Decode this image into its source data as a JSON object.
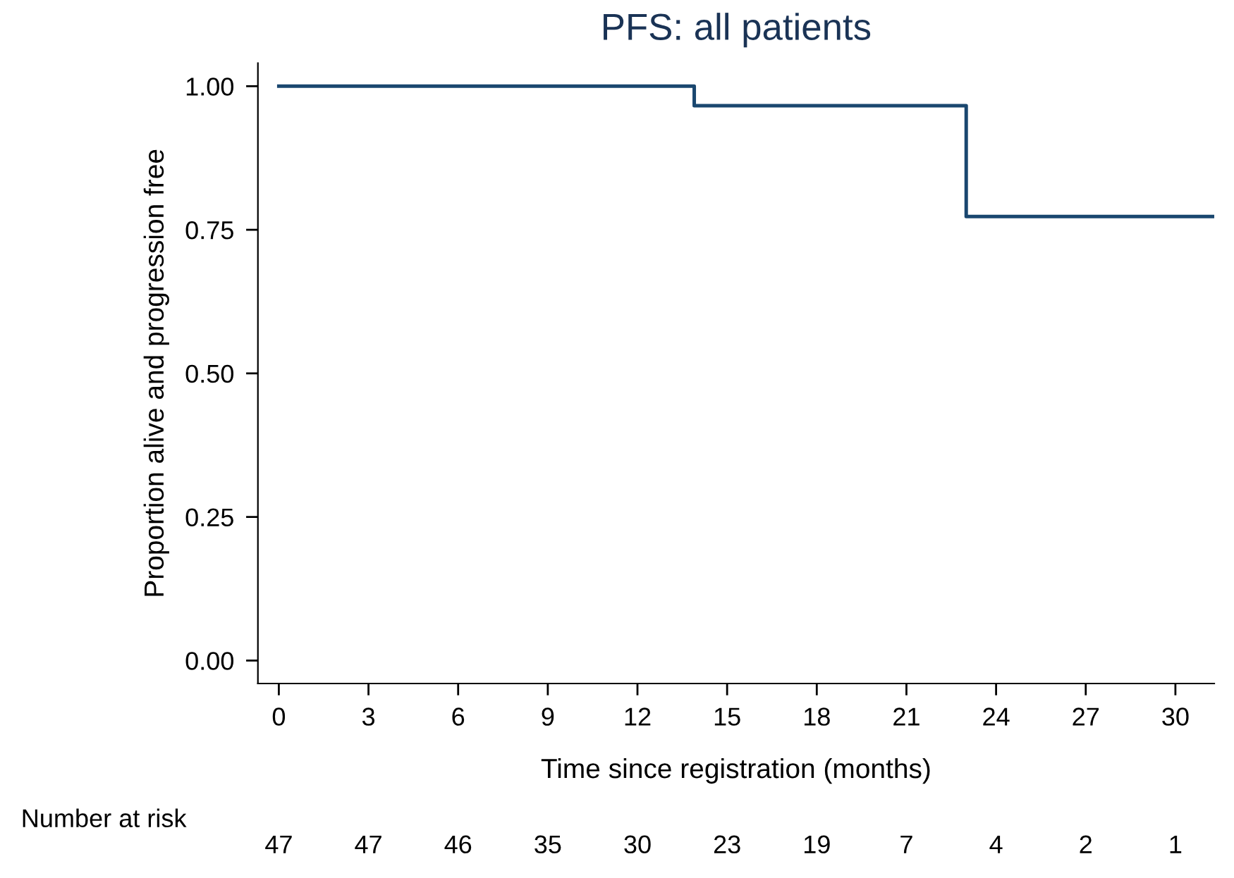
{
  "chart_data": {
    "type": "step",
    "title": "PFS: all patients",
    "xlabel": "Time since registration (months)",
    "ylabel": "Proportion alive and progression free",
    "series": [
      {
        "color": "#1a476f",
        "x": [
          0,
          13.9,
          23.0,
          31.3
        ],
        "values": [
          1.0,
          0.966,
          0.773,
          0.773
        ]
      }
    ],
    "xlim": [
      -0.7,
      31.3
    ],
    "xticks": [
      0,
      3,
      6,
      9,
      12,
      15,
      18,
      21,
      24,
      27,
      30
    ],
    "ylim": [
      -0.04,
      1.04
    ],
    "yticks": [
      {
        "value": 0,
        "label": "0.00"
      },
      {
        "value": 0.25,
        "label": "0.25"
      },
      {
        "value": 0.5,
        "label": "0.50"
      },
      {
        "value": 0.75,
        "label": "0.75"
      },
      {
        "value": 1,
        "label": "1.00"
      }
    ],
    "grid": false,
    "legend": false,
    "annotations": [
      "Number at risk",
      "47",
      "47",
      "46",
      "35",
      "30",
      "23",
      "19",
      "7",
      "4",
      "2",
      "1"
    ]
  }
}
